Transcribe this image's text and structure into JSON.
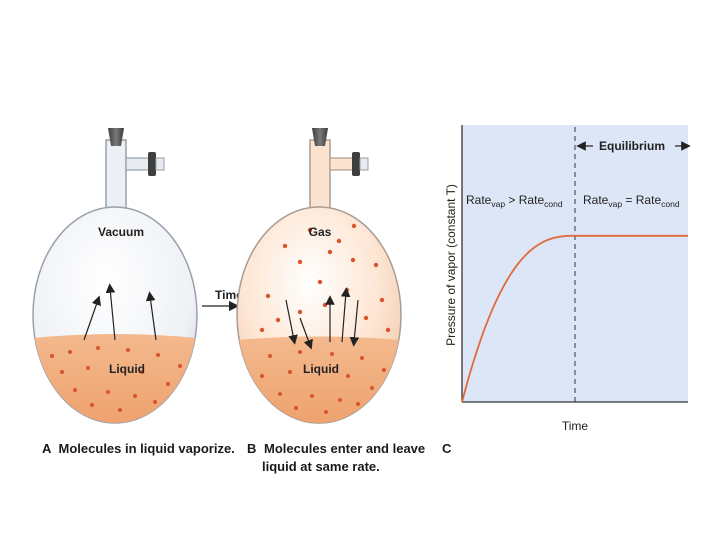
{
  "panel_a": {
    "top_label": "Vacuum",
    "liquid_label": "Liquid",
    "caption_letter": "A",
    "caption": "Molecules in liquid vaporize."
  },
  "transition": {
    "label": "Time"
  },
  "panel_b": {
    "top_label": "Gas",
    "liquid_label": "Liquid",
    "caption_letter": "B",
    "caption_line1": "Molecules enter and leave",
    "caption_line2": "liquid at same rate."
  },
  "panel_c": {
    "caption_letter": "C",
    "equilibrium_label": "Equilibrium",
    "rate_left": {
      "base1": "Rate",
      "sub1": "vap",
      "op": " > ",
      "base2": "Rate",
      "sub2": "cond"
    },
    "rate_right": {
      "base1": "Rate",
      "sub1": "vap",
      "op": " = ",
      "base2": "Rate",
      "sub2": "cond"
    }
  },
  "colors": {
    "liquid": "#f0a878",
    "molecule": "#d9542b",
    "plot_background": "#dde6f6",
    "curve": "#e06a3a",
    "flask_glass": "#eef1f5",
    "gas_glow": "#fbd9bf"
  },
  "chart_data": {
    "type": "line",
    "title": "",
    "xlabel": "Time",
    "ylabel": "Pressure of vapor (constant T)",
    "x_ticks": [],
    "y_ticks": [],
    "grid": false,
    "legend": "none",
    "equilibrium_time_fraction": 0.5,
    "plateau_fraction_of_y_range": 0.6,
    "series": [
      {
        "shape": "rises from zero and levels off at a constant vapor pressure at equilibrium"
      }
    ]
  }
}
